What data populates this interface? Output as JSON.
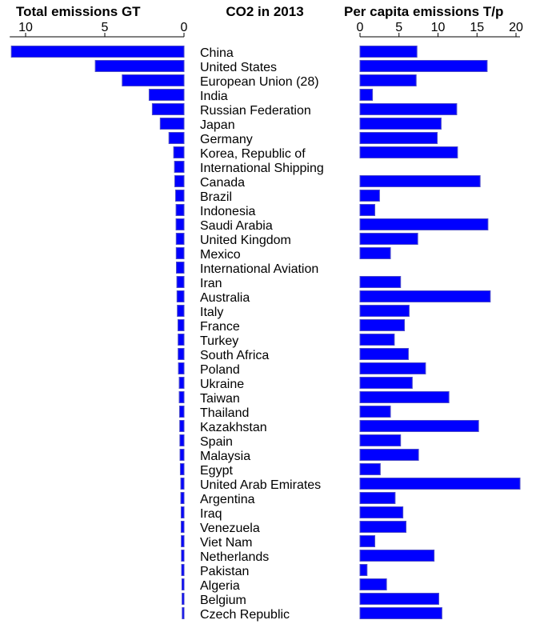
{
  "chart_data": {
    "type": "bar",
    "title": "CO2 in 2013",
    "categories": [
      "China",
      "United States",
      "European Union (28)",
      "India",
      "Russian Federation",
      "Japan",
      "Germany",
      "Korea, Republic of",
      "International Shipping",
      "Canada",
      "Brazil",
      "Indonesia",
      "Saudi Arabia",
      "United Kingdom",
      "Mexico",
      "International Aviation",
      "Iran",
      "Australia",
      "Italy",
      "France",
      "Turkey",
      "South Africa",
      "Poland",
      "Ukraine",
      "Taiwan",
      "Thailand",
      "Kazakhstan",
      "Spain",
      "Malaysia",
      "Egypt",
      "United Arab Emirates",
      "Argentina",
      "Iraq",
      "Venezuela",
      "Viet Nam",
      "Netherlands",
      "Pakistan",
      "Algeria",
      "Belgium",
      "Czech Republic"
    ],
    "series": [
      {
        "name": "Total emissions GT",
        "xlim": [
          0,
          11
        ],
        "ticks": [
          "10",
          "5",
          "0"
        ],
        "tick_values": [
          10,
          5,
          0
        ],
        "values": [
          10.9,
          5.6,
          3.9,
          2.2,
          2.0,
          1.5,
          0.95,
          0.65,
          0.6,
          0.58,
          0.53,
          0.5,
          0.5,
          0.49,
          0.49,
          0.48,
          0.45,
          0.44,
          0.42,
          0.38,
          0.37,
          0.37,
          0.35,
          0.3,
          0.3,
          0.28,
          0.27,
          0.26,
          0.25,
          0.23,
          0.2,
          0.2,
          0.18,
          0.18,
          0.17,
          0.16,
          0.15,
          0.13,
          0.12,
          0.11
        ]
      },
      {
        "name": "Per capita emissions T/p",
        "xlim": [
          0,
          22
        ],
        "ticks": [
          "0",
          "5",
          "10",
          "15",
          "20"
        ],
        "tick_values": [
          0,
          5,
          10,
          15,
          20
        ],
        "values": [
          7.3,
          16.3,
          7.2,
          1.6,
          12.4,
          10.4,
          9.9,
          12.5,
          null,
          15.4,
          2.5,
          1.9,
          16.4,
          7.4,
          3.9,
          null,
          5.2,
          16.7,
          6.3,
          5.7,
          4.4,
          6.2,
          8.4,
          6.7,
          11.4,
          3.9,
          15.2,
          5.2,
          7.5,
          2.6,
          21.3,
          4.5,
          5.5,
          5.9,
          1.9,
          9.5,
          0.9,
          3.4,
          10.1,
          10.5
        ]
      }
    ],
    "bar_color": "#0000ff",
    "bar_edge_color": "#4d4dc9"
  }
}
